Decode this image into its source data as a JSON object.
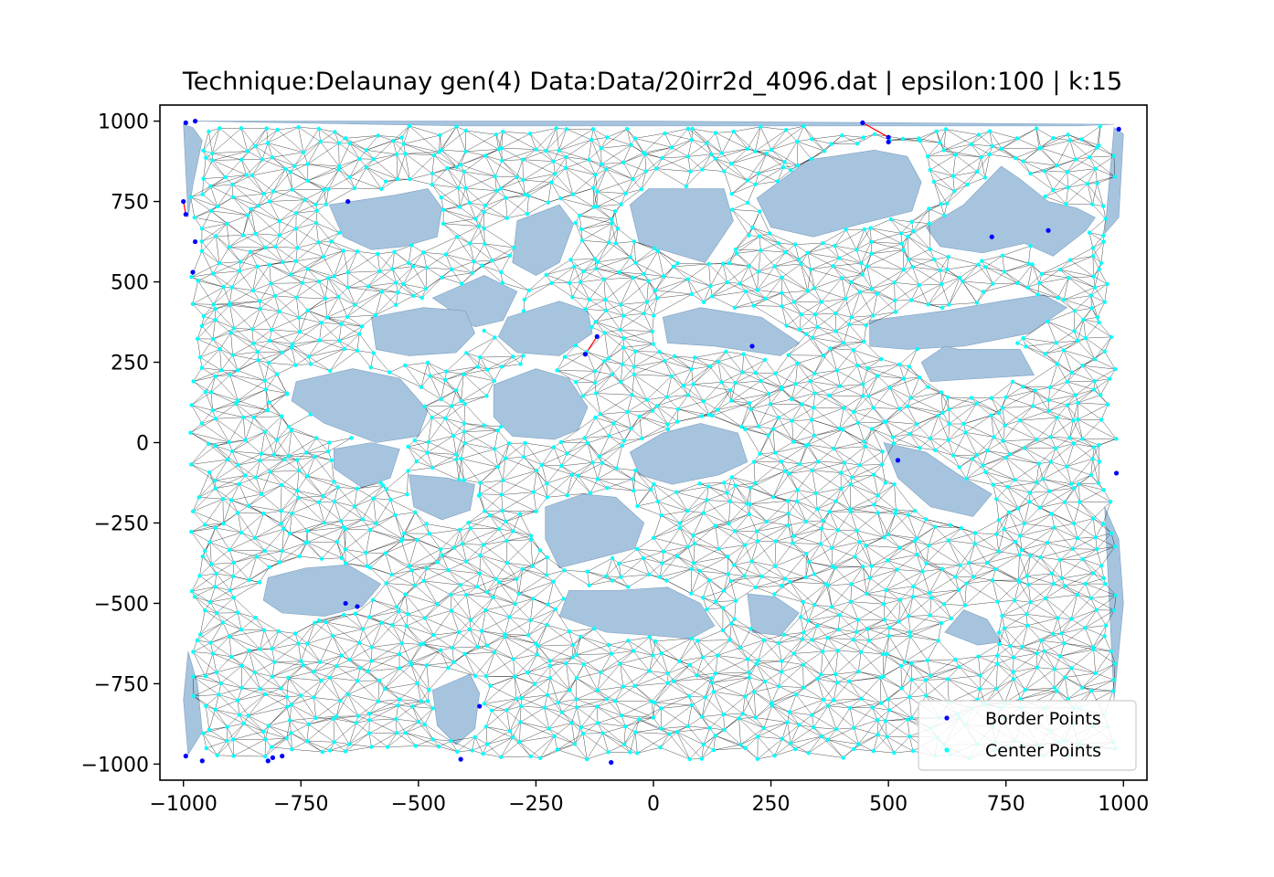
{
  "chart_data": {
    "type": "scatter",
    "title": "Technique:Delaunay  gen(4) Data:Data/20irr2d_4096.dat | epsilon:100 | k:15",
    "xlabel": "",
    "ylabel": "",
    "xlim": [
      -1050,
      1050
    ],
    "ylim": [
      -1050,
      1050
    ],
    "xticks": [
      -1000,
      -750,
      -500,
      -250,
      0,
      250,
      500,
      750,
      1000
    ],
    "yticks": [
      -1000,
      -750,
      -500,
      -250,
      0,
      250,
      500,
      750,
      1000
    ],
    "xtick_labels": [
      "−1000",
      "−750",
      "−500",
      "−250",
      "0",
      "250",
      "500",
      "750",
      "1000"
    ],
    "ytick_labels": [
      "−1000",
      "−750",
      "−500",
      "−250",
      "0",
      "250",
      "500",
      "750",
      "1000"
    ],
    "grid": false,
    "legend_position": "lower-right",
    "legend": [
      {
        "label": "Border Points",
        "color": "#0000ff"
      },
      {
        "label": "Center Points",
        "color": "#00ffff"
      }
    ],
    "mesh_edge_color": "#000000",
    "hole_fill_color": "#a6c4de",
    "highlight_edge_color": "#ff0000",
    "holes": [
      [
        [
          -690,
          740
        ],
        [
          -550,
          770
        ],
        [
          -480,
          790
        ],
        [
          -450,
          730
        ],
        [
          -460,
          640
        ],
        [
          -530,
          610
        ],
        [
          -600,
          600
        ],
        [
          -660,
          640
        ],
        [
          -690,
          740
        ]
      ],
      [
        [
          -290,
          690
        ],
        [
          -200,
          740
        ],
        [
          -170,
          680
        ],
        [
          -200,
          560
        ],
        [
          -250,
          520
        ],
        [
          -300,
          560
        ],
        [
          -290,
          690
        ]
      ],
      [
        [
          -50,
          740
        ],
        [
          -10,
          790
        ],
        [
          150,
          790
        ],
        [
          170,
          690
        ],
        [
          110,
          560
        ],
        [
          -30,
          620
        ],
        [
          -50,
          740
        ]
      ],
      [
        [
          220,
          760
        ],
        [
          330,
          880
        ],
        [
          380,
          890
        ],
        [
          470,
          910
        ],
        [
          540,
          890
        ],
        [
          570,
          810
        ],
        [
          550,
          720
        ],
        [
          440,
          680
        ],
        [
          340,
          640
        ],
        [
          250,
          670
        ],
        [
          220,
          760
        ]
      ],
      [
        [
          660,
          740
        ],
        [
          740,
          860
        ],
        [
          780,
          820
        ],
        [
          840,
          750
        ],
        [
          900,
          730
        ],
        [
          940,
          700
        ],
        [
          920,
          660
        ],
        [
          850,
          580
        ],
        [
          790,
          620
        ],
        [
          700,
          590
        ],
        [
          610,
          610
        ],
        [
          580,
          670
        ],
        [
          660,
          740
        ]
      ],
      [
        [
          -310,
          390
        ],
        [
          -200,
          440
        ],
        [
          -140,
          410
        ],
        [
          -130,
          340
        ],
        [
          -200,
          270
        ],
        [
          -290,
          280
        ],
        [
          -330,
          330
        ],
        [
          -310,
          390
        ]
      ],
      [
        [
          -470,
          450
        ],
        [
          -360,
          520
        ],
        [
          -290,
          470
        ],
        [
          -320,
          380
        ],
        [
          -380,
          360
        ],
        [
          -470,
          450
        ]
      ],
      [
        [
          -600,
          390
        ],
        [
          -490,
          420
        ],
        [
          -400,
          410
        ],
        [
          -380,
          340
        ],
        [
          -420,
          280
        ],
        [
          -520,
          270
        ],
        [
          -590,
          290
        ],
        [
          -600,
          390
        ]
      ],
      [
        [
          20,
          390
        ],
        [
          100,
          420
        ],
        [
          230,
          390
        ],
        [
          310,
          310
        ],
        [
          270,
          270
        ],
        [
          130,
          300
        ],
        [
          30,
          310
        ],
        [
          20,
          390
        ]
      ],
      [
        [
          460,
          380
        ],
        [
          620,
          410
        ],
        [
          740,
          440
        ],
        [
          830,
          460
        ],
        [
          880,
          420
        ],
        [
          800,
          340
        ],
        [
          660,
          300
        ],
        [
          540,
          290
        ],
        [
          460,
          300
        ],
        [
          460,
          380
        ]
      ],
      [
        [
          570,
          250
        ],
        [
          620,
          300
        ],
        [
          650,
          290
        ],
        [
          780,
          290
        ],
        [
          810,
          210
        ],
        [
          700,
          200
        ],
        [
          590,
          190
        ],
        [
          570,
          250
        ]
      ],
      [
        [
          -760,
          190
        ],
        [
          -640,
          230
        ],
        [
          -540,
          200
        ],
        [
          -480,
          100
        ],
        [
          -500,
          20
        ],
        [
          -590,
          0
        ],
        [
          -700,
          60
        ],
        [
          -770,
          130
        ],
        [
          -760,
          190
        ]
      ],
      [
        [
          -340,
          180
        ],
        [
          -250,
          230
        ],
        [
          -180,
          200
        ],
        [
          -140,
          110
        ],
        [
          -160,
          40
        ],
        [
          -210,
          10
        ],
        [
          -300,
          20
        ],
        [
          -340,
          80
        ],
        [
          -340,
          180
        ]
      ],
      [
        [
          -680,
          -20
        ],
        [
          -600,
          0
        ],
        [
          -540,
          -20
        ],
        [
          -560,
          -110
        ],
        [
          -620,
          -140
        ],
        [
          -680,
          -80
        ],
        [
          -680,
          -20
        ]
      ],
      [
        [
          -520,
          -100
        ],
        [
          -440,
          -110
        ],
        [
          -380,
          -130
        ],
        [
          -390,
          -210
        ],
        [
          -450,
          -240
        ],
        [
          -510,
          -200
        ],
        [
          -520,
          -100
        ]
      ],
      [
        [
          -50,
          -30
        ],
        [
          20,
          30
        ],
        [
          100,
          60
        ],
        [
          180,
          30
        ],
        [
          200,
          -60
        ],
        [
          140,
          -100
        ],
        [
          40,
          -130
        ],
        [
          -30,
          -100
        ],
        [
          -50,
          -30
        ]
      ],
      [
        [
          490,
          0
        ],
        [
          580,
          -30
        ],
        [
          650,
          -100
        ],
        [
          720,
          -160
        ],
        [
          680,
          -230
        ],
        [
          590,
          -200
        ],
        [
          520,
          -110
        ],
        [
          490,
          0
        ]
      ],
      [
        [
          -230,
          -200
        ],
        [
          -150,
          -160
        ],
        [
          -80,
          -170
        ],
        [
          -20,
          -250
        ],
        [
          -40,
          -330
        ],
        [
          -120,
          -360
        ],
        [
          -200,
          -390
        ],
        [
          -230,
          -300
        ],
        [
          -230,
          -200
        ]
      ],
      [
        [
          -820,
          -420
        ],
        [
          -740,
          -390
        ],
        [
          -650,
          -380
        ],
        [
          -580,
          -440
        ],
        [
          -620,
          -510
        ],
        [
          -700,
          -540
        ],
        [
          -790,
          -530
        ],
        [
          -830,
          -490
        ],
        [
          -820,
          -420
        ]
      ],
      [
        [
          200,
          -470
        ],
        [
          260,
          -480
        ],
        [
          310,
          -530
        ],
        [
          270,
          -600
        ],
        [
          210,
          -590
        ],
        [
          200,
          -470
        ]
      ],
      [
        [
          -200,
          -540
        ],
        [
          -100,
          -590
        ],
        [
          0,
          -600
        ],
        [
          80,
          -610
        ],
        [
          130,
          -570
        ],
        [
          100,
          -500
        ],
        [
          30,
          -450
        ],
        [
          -80,
          -460
        ],
        [
          -180,
          -460
        ],
        [
          -200,
          -540
        ]
      ],
      [
        [
          620,
          -590
        ],
        [
          690,
          -630
        ],
        [
          740,
          -620
        ],
        [
          710,
          -550
        ],
        [
          660,
          -520
        ],
        [
          620,
          -590
        ]
      ],
      [
        [
          -470,
          -770
        ],
        [
          -390,
          -720
        ],
        [
          -370,
          -780
        ],
        [
          -380,
          -890
        ],
        [
          -420,
          -940
        ],
        [
          -460,
          -880
        ],
        [
          -470,
          -770
        ]
      ],
      [
        [
          -1000,
          990
        ],
        [
          -980,
          980
        ],
        [
          -960,
          940
        ],
        [
          -980,
          800
        ],
        [
          -990,
          700
        ],
        [
          -1000,
          990
        ]
      ],
      [
        [
          -990,
          -650
        ],
        [
          -970,
          -750
        ],
        [
          -960,
          -900
        ],
        [
          -990,
          -970
        ],
        [
          -1000,
          -800
        ],
        [
          -990,
          -650
        ]
      ],
      [
        [
          960,
          650
        ],
        [
          990,
          700
        ],
        [
          1000,
          960
        ],
        [
          980,
          980
        ],
        [
          960,
          650
        ]
      ],
      [
        [
          960,
          -200
        ],
        [
          990,
          -300
        ],
        [
          1000,
          -500
        ],
        [
          980,
          -800
        ],
        [
          960,
          -200
        ]
      ],
      [
        [
          -980,
          1000
        ],
        [
          -400,
          1000
        ],
        [
          0,
          1000
        ],
        [
          500,
          995
        ],
        [
          980,
          990
        ],
        [
          900,
          985
        ],
        [
          300,
          985
        ],
        [
          -400,
          985
        ],
        [
          -980,
          1000
        ]
      ]
    ],
    "border_points": [
      [
        -995,
        995
      ],
      [
        -975,
        1000
      ],
      [
        -1000,
        750
      ],
      [
        -995,
        710
      ],
      [
        -975,
        625
      ],
      [
        -980,
        530
      ],
      [
        -650,
        750
      ],
      [
        445,
        995
      ],
      [
        500,
        950
      ],
      [
        500,
        935
      ],
      [
        990,
        975
      ],
      [
        720,
        640
      ],
      [
        840,
        660
      ],
      [
        -120,
        330
      ],
      [
        -145,
        275
      ],
      [
        210,
        300
      ],
      [
        520,
        -55
      ],
      [
        985,
        -95
      ],
      [
        -655,
        -500
      ],
      [
        -630,
        -510
      ],
      [
        -370,
        -820
      ],
      [
        -410,
        -985
      ],
      [
        -90,
        -995
      ],
      [
        -995,
        -975
      ],
      [
        -960,
        -990
      ],
      [
        -820,
        -990
      ],
      [
        -810,
        -980
      ],
      [
        -790,
        -975
      ]
    ],
    "highlight_edges": [
      [
        [
          445,
          995
        ],
        [
          500,
          950
        ]
      ],
      [
        [
          -120,
          330
        ],
        [
          -145,
          275
        ]
      ],
      [
        [
          -1000,
          750
        ],
        [
          -995,
          710
        ]
      ]
    ],
    "center_points_count": 1800,
    "center_points_seed": 4096
  }
}
